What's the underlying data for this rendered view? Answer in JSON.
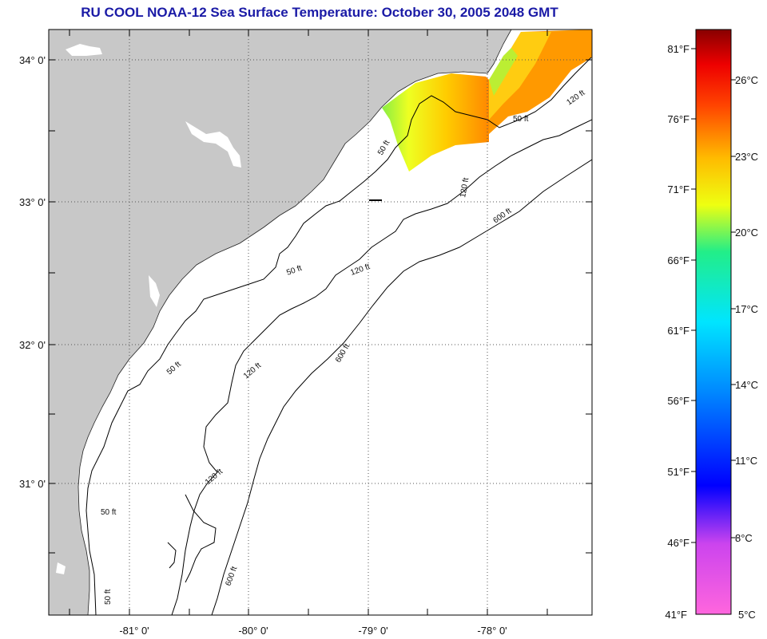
{
  "title": "RU COOL  NOAA-12  Sea Surface Temperature:  October 30, 2005 2048 GMT",
  "map": {
    "lat_labels": [
      "34° 0'",
      "33° 0'",
      "32° 0'",
      "31° 0'"
    ],
    "lon_labels": [
      "-81° 0'",
      "-80° 0'",
      "-79° 0'",
      "-78° 0'"
    ],
    "land_color": "#c8c8c8",
    "water_color": "#ffffff",
    "grid": true,
    "depth_contour_labels": [
      "50 ft",
      "120 ft",
      "600 ft"
    ]
  },
  "legend": {
    "fahrenheit_labels": [
      "81°F",
      "76°F",
      "71°F",
      "66°F",
      "61°F",
      "56°F",
      "51°F",
      "46°F",
      "41°F"
    ],
    "celsius_labels": [
      "26°C",
      "23°C",
      "20°C",
      "17°C",
      "14°C",
      "11°C",
      "8°C",
      "5°C"
    ],
    "colors": [
      "#ff66dd",
      "#9933cc",
      "#0000ff",
      "#0088ff",
      "#00e5ff",
      "#22ee88",
      "#eeff11",
      "#ffbb00",
      "#ff4400",
      "#ee0000",
      "#880000"
    ]
  }
}
